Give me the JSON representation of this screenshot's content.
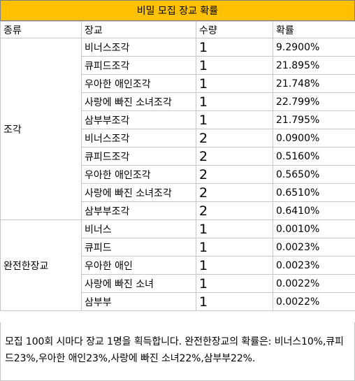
{
  "title": "비밀 모집 장교 확률",
  "headers": {
    "type": "종류",
    "officer": "장교",
    "qty": "수량",
    "prob": "확률"
  },
  "groups": [
    {
      "type": "조각",
      "rows": [
        {
          "officer": "비너스조각",
          "qty": "1",
          "prob": "9.2900%"
        },
        {
          "officer": "큐피드조각",
          "qty": "1",
          "prob": "21.895%"
        },
        {
          "officer": "우아한 애인조각",
          "qty": "1",
          "prob": "21.748%"
        },
        {
          "officer": "사랑에 빠진 소녀조각",
          "qty": "1",
          "prob": "22.799%"
        },
        {
          "officer": "삼부부조각",
          "qty": "1",
          "prob": "21.795%"
        },
        {
          "officer": "비너스조각",
          "qty": "2",
          "prob": "0.0900%"
        },
        {
          "officer": "큐피드조각",
          "qty": "2",
          "prob": "0.5160%"
        },
        {
          "officer": "우아한 애인조각",
          "qty": "2",
          "prob": "0.5650%"
        },
        {
          "officer": "사랑에 빠진 소녀조각",
          "qty": "2",
          "prob": "0.6510%"
        },
        {
          "officer": "삼부부조각",
          "qty": "2",
          "prob": "0.6410%"
        }
      ]
    },
    {
      "type": "완전한장교",
      "rows": [
        {
          "officer": "비너스",
          "qty": "1",
          "prob": "0.0010%"
        },
        {
          "officer": "큐피드",
          "qty": "1",
          "prob": "0.0023%"
        },
        {
          "officer": "우아한 애인",
          "qty": "1",
          "prob": "0.0023%"
        },
        {
          "officer": "사랑에 빠진 소녀",
          "qty": "1",
          "prob": "0.0022%"
        },
        {
          "officer": "삼부부",
          "qty": "1",
          "prob": "0.0022%"
        }
      ]
    }
  ],
  "note": "모집 100회 시마다 장교 1명을 획득합니다. 완전한장교의 확률은: 비너스10%,큐피드23%,우아한 애인23%,사랑에 빠진 소녀22%,삼부부22%."
}
